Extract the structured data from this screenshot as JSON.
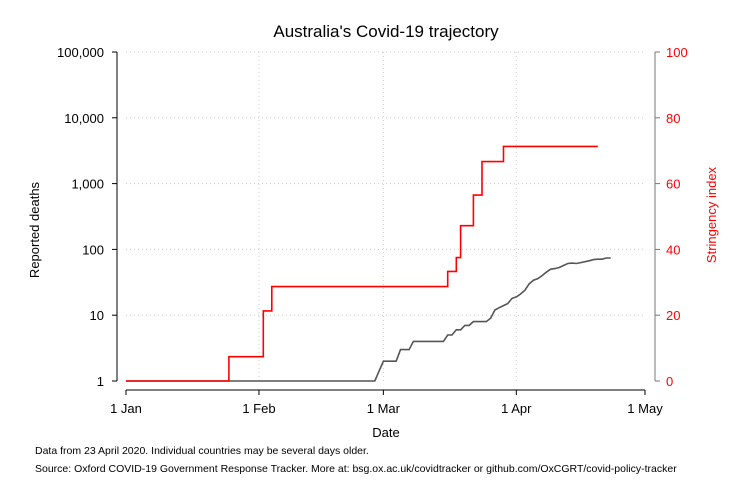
{
  "chart_data": {
    "type": "line",
    "title": "Australia's Covid-19 trajectory",
    "xlabel": "Date",
    "ylabel_left": "Reported deaths",
    "ylabel_right": "Stringency index",
    "x_ticks": [
      "1 Jan",
      "1 Feb",
      "1 Mar",
      "1 Apr",
      "1 May"
    ],
    "y_left_ticks": [
      "1",
      "10",
      "100",
      "1,000",
      "10,000",
      "100,000"
    ],
    "y_right_ticks": [
      "0",
      "20",
      "40",
      "60",
      "80",
      "100"
    ],
    "y_left_scale": "log",
    "y_left_range": [
      1,
      100000
    ],
    "y_right_range": [
      0,
      100
    ],
    "x_range": [
      "2020-01-01",
      "2020-05-01"
    ],
    "grid": true,
    "colors": {
      "deaths": "#555555",
      "stringency": "#ff0000",
      "grid": "#cccccc"
    },
    "series": [
      {
        "axis": "left",
        "points": [
          [
            "2020-01-01",
            1
          ],
          [
            "2020-02-28",
            1
          ],
          [
            "2020-03-01",
            2
          ],
          [
            "2020-03-04",
            2
          ],
          [
            "2020-03-05",
            3
          ],
          [
            "2020-03-07",
            3
          ],
          [
            "2020-03-08",
            4
          ],
          [
            "2020-03-15",
            4
          ],
          [
            "2020-03-16",
            5
          ],
          [
            "2020-03-17",
            5
          ],
          [
            "2020-03-18",
            6
          ],
          [
            "2020-03-19",
            6
          ],
          [
            "2020-03-20",
            7
          ],
          [
            "2020-03-21",
            7
          ],
          [
            "2020-03-22",
            8
          ],
          [
            "2020-03-25",
            8
          ],
          [
            "2020-03-26",
            9
          ],
          [
            "2020-03-27",
            12
          ],
          [
            "2020-03-28",
            13
          ],
          [
            "2020-03-29",
            14
          ],
          [
            "2020-03-30",
            15
          ],
          [
            "2020-03-31",
            18
          ],
          [
            "2020-04-01",
            19
          ],
          [
            "2020-04-02",
            21
          ],
          [
            "2020-04-03",
            24
          ],
          [
            "2020-04-04",
            30
          ],
          [
            "2020-04-05",
            34
          ],
          [
            "2020-04-06",
            36
          ],
          [
            "2020-04-07",
            40
          ],
          [
            "2020-04-08",
            45
          ],
          [
            "2020-04-09",
            50
          ],
          [
            "2020-04-10",
            51
          ],
          [
            "2020-04-11",
            53
          ],
          [
            "2020-04-12",
            57
          ],
          [
            "2020-04-13",
            61
          ],
          [
            "2020-04-14",
            62
          ],
          [
            "2020-04-15",
            61
          ],
          [
            "2020-04-16",
            63
          ],
          [
            "2020-04-17",
            65
          ],
          [
            "2020-04-18",
            67
          ],
          [
            "2020-04-19",
            70
          ],
          [
            "2020-04-20",
            71
          ],
          [
            "2020-04-21",
            71
          ],
          [
            "2020-04-22",
            74
          ],
          [
            "2020-04-23",
            74
          ]
        ]
      },
      {
        "axis": "right",
        "step": true,
        "points": [
          [
            "2020-01-01",
            0
          ],
          [
            "2020-01-24",
            0
          ],
          [
            "2020-01-25",
            7.4
          ],
          [
            "2020-02-01",
            7.4
          ],
          [
            "2020-02-02",
            21.3
          ],
          [
            "2020-02-03",
            21.3
          ],
          [
            "2020-02-04",
            28.7
          ],
          [
            "2020-03-15",
            28.7
          ],
          [
            "2020-03-16",
            33.3
          ],
          [
            "2020-03-17",
            33.3
          ],
          [
            "2020-03-18",
            37.5
          ],
          [
            "2020-03-19",
            47.2
          ],
          [
            "2020-03-21",
            47.2
          ],
          [
            "2020-03-22",
            56.5
          ],
          [
            "2020-03-23",
            56.5
          ],
          [
            "2020-03-24",
            66.7
          ],
          [
            "2020-03-28",
            66.7
          ],
          [
            "2020-03-29",
            71.3
          ],
          [
            "2020-04-20",
            71.3
          ]
        ]
      }
    ]
  },
  "footnotes": {
    "line1": "Data from 23 April 2020. Individual countries may be several days older.",
    "line2": "Source: Oxford COVID-19 Government Response Tracker. More at: bsg.ox.ac.uk/covidtracker or github.com/OxCGRT/covid-policy-tracker"
  }
}
